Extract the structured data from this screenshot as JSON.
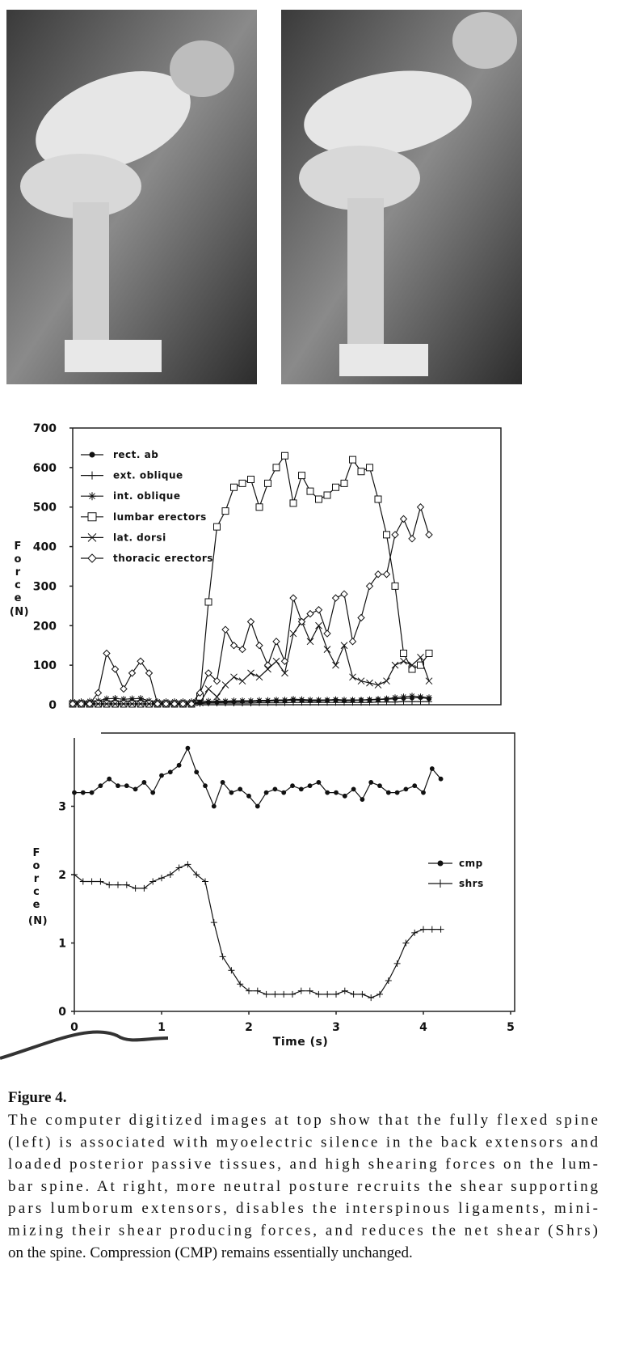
{
  "chart_data": [
    {
      "type": "line",
      "x": [
        0,
        0.1,
        0.2,
        0.3,
        0.4,
        0.5,
        0.6,
        0.7,
        0.8,
        0.9,
        1.0,
        1.1,
        1.2,
        1.3,
        1.4,
        1.5,
        1.6,
        1.7,
        1.8,
        1.9,
        2.0,
        2.1,
        2.2,
        2.3,
        2.4,
        2.5,
        2.6,
        2.7,
        2.8,
        2.9,
        3.0,
        3.1,
        3.2,
        3.3,
        3.4,
        3.5,
        3.6,
        3.7,
        3.8,
        3.9,
        4.0,
        4.1,
        4.2
      ],
      "xlim": [
        0,
        5
      ],
      "ylim": [
        0,
        700
      ],
      "yticks": [
        0,
        100,
        200,
        300,
        400,
        500,
        600,
        700
      ],
      "ylabel": "Force",
      "ylabel_unit": "(N)",
      "legend": "upper left",
      "series": [
        {
          "name": "rect. ab",
          "color": "#111111",
          "marker": "dot",
          "values": [
            5,
            6,
            5,
            7,
            8,
            9,
            8,
            10,
            9,
            6,
            5,
            5,
            4,
            5,
            5,
            5,
            6,
            6,
            7,
            7,
            8,
            8,
            9,
            9,
            10,
            10,
            12,
            11,
            10,
            10,
            11,
            12,
            10,
            11,
            12,
            12,
            13,
            14,
            15,
            16,
            17,
            18,
            15
          ]
        },
        {
          "name": "ext. oblique",
          "color": "#111111",
          "marker": "plus",
          "values": [
            3,
            3,
            3,
            3,
            4,
            4,
            3,
            4,
            4,
            3,
            3,
            3,
            3,
            3,
            3,
            3,
            4,
            4,
            4,
            4,
            4,
            4,
            5,
            5,
            5,
            5,
            6,
            6,
            6,
            6,
            6,
            6,
            6,
            6,
            6,
            6,
            7,
            7,
            7,
            8,
            8,
            8,
            8
          ]
        },
        {
          "name": "int. oblique",
          "color": "#111111",
          "marker": "star",
          "values": [
            8,
            8,
            9,
            10,
            15,
            16,
            14,
            15,
            16,
            10,
            8,
            8,
            8,
            8,
            8,
            8,
            9,
            9,
            9,
            10,
            10,
            10,
            11,
            11,
            12,
            12,
            14,
            13,
            12,
            12,
            12,
            13,
            12,
            12,
            12,
            13,
            14,
            15,
            18,
            20,
            22,
            20,
            18
          ]
        },
        {
          "name": "lumbar erectors",
          "color": "#111111",
          "marker": "square",
          "values": [
            2,
            2,
            2,
            2,
            2,
            2,
            2,
            2,
            2,
            2,
            2,
            2,
            2,
            2,
            2,
            20,
            260,
            450,
            490,
            550,
            560,
            570,
            500,
            560,
            600,
            630,
            510,
            580,
            540,
            520,
            530,
            550,
            560,
            620,
            590,
            600,
            520,
            430,
            300,
            130,
            90,
            100,
            130
          ]
        },
        {
          "name": "lat. dorsi",
          "color": "#111111",
          "marker": "x",
          "values": [
            2,
            2,
            2,
            2,
            2,
            2,
            2,
            2,
            2,
            2,
            2,
            2,
            2,
            2,
            2,
            5,
            40,
            20,
            50,
            70,
            60,
            80,
            70,
            90,
            110,
            80,
            180,
            210,
            160,
            200,
            140,
            100,
            150,
            70,
            60,
            55,
            50,
            60,
            100,
            110,
            100,
            120,
            60
          ]
        },
        {
          "name": "thoracic erectors",
          "color": "#111111",
          "marker": "diamond",
          "values": [
            2,
            2,
            2,
            30,
            130,
            90,
            40,
            80,
            110,
            80,
            2,
            2,
            2,
            2,
            2,
            30,
            80,
            60,
            190,
            150,
            140,
            210,
            150,
            100,
            160,
            110,
            270,
            210,
            230,
            240,
            180,
            270,
            280,
            160,
            220,
            300,
            330,
            330,
            430,
            470,
            420,
            500,
            430
          ]
        }
      ]
    },
    {
      "type": "line",
      "x": [
        0,
        0.1,
        0.2,
        0.3,
        0.4,
        0.5,
        0.6,
        0.7,
        0.8,
        0.9,
        1.0,
        1.1,
        1.2,
        1.3,
        1.4,
        1.5,
        1.6,
        1.7,
        1.8,
        1.9,
        2.0,
        2.1,
        2.2,
        2.3,
        2.4,
        2.5,
        2.6,
        2.7,
        2.8,
        2.9,
        3.0,
        3.1,
        3.2,
        3.3,
        3.4,
        3.5,
        3.6,
        3.7,
        3.8,
        3.9,
        4.0,
        4.1,
        4.2
      ],
      "xlim": [
        0,
        5
      ],
      "xticks": [
        0,
        1,
        2,
        3,
        4,
        5
      ],
      "xlabel": "Time (s)",
      "ylim": [
        0,
        4
      ],
      "yticks": [
        0,
        1,
        2,
        3
      ],
      "ylabel": "Force",
      "ylabel_unit": "(N)",
      "legend": "center right",
      "series": [
        {
          "name": "cmp",
          "color": "#111111",
          "marker": "dot",
          "values": [
            3.2,
            3.2,
            3.2,
            3.3,
            3.4,
            3.3,
            3.3,
            3.25,
            3.35,
            3.2,
            3.45,
            3.5,
            3.6,
            3.85,
            3.5,
            3.3,
            3.0,
            3.35,
            3.2,
            3.25,
            3.15,
            3.0,
            3.2,
            3.25,
            3.2,
            3.3,
            3.25,
            3.3,
            3.35,
            3.2,
            3.2,
            3.15,
            3.25,
            3.1,
            3.35,
            3.3,
            3.2,
            3.2,
            3.25,
            3.3,
            3.2,
            3.55,
            3.4
          ]
        },
        {
          "name": "shrs",
          "color": "#111111",
          "marker": "plus",
          "values": [
            2.0,
            1.9,
            1.9,
            1.9,
            1.85,
            1.85,
            1.85,
            1.8,
            1.8,
            1.9,
            1.95,
            2.0,
            2.1,
            2.15,
            2.0,
            1.9,
            1.3,
            0.8,
            0.6,
            0.4,
            0.3,
            0.3,
            0.25,
            0.25,
            0.25,
            0.25,
            0.3,
            0.3,
            0.25,
            0.25,
            0.25,
            0.3,
            0.25,
            0.25,
            0.2,
            0.25,
            0.45,
            0.7,
            1.0,
            1.15,
            1.2,
            1.2,
            1.2
          ]
        }
      ]
    }
  ],
  "caption": {
    "label": "Figure 4.",
    "lines": [
      "The computer digitized images at top show that the fully flexed spine",
      "(left) is associated with myoelectric silence in the back extensors and",
      "loaded posterior passive tissues, and high shearing forces on the lum-",
      "bar spine. At right, more neutral posture recruits the shear supporting",
      "pars lumborum extensors, disables the interspinous ligaments, mini-",
      "mizing their shear producing forces, and reduces the net shear (Shrs)",
      "on the spine. Compression (CMP) remains essentially unchanged."
    ]
  }
}
